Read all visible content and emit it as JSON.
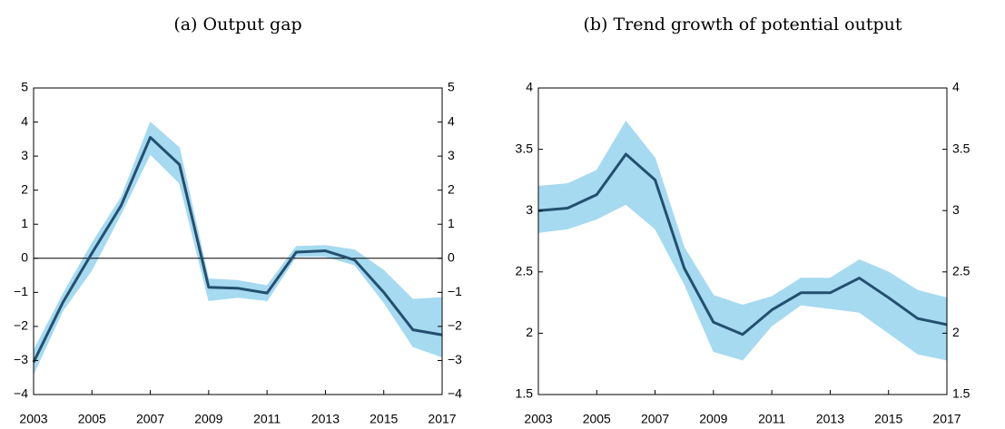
{
  "chart_data": [
    {
      "type": "line",
      "title": "(a) Output gap",
      "x": [
        2003,
        2004,
        2005,
        2006,
        2007,
        2008,
        2009,
        2010,
        2011,
        2012,
        2013,
        2014,
        2015,
        2016,
        2017
      ],
      "series": [
        {
          "color": "#23506f",
          "values": [
            -3.05,
            -1.3,
            0.15,
            1.55,
            3.55,
            2.75,
            -0.85,
            -0.88,
            -1.02,
            0.18,
            0.22,
            -0.05,
            -1.0,
            -2.1,
            -2.25
          ]
        }
      ],
      "band": {
        "color": "#a6daf1",
        "upper": [
          -2.7,
          -1.05,
          0.45,
          1.8,
          4.0,
          3.25,
          -0.6,
          -0.65,
          -0.8,
          0.35,
          0.38,
          0.25,
          -0.35,
          -1.2,
          -1.15
        ],
        "lower": [
          -3.4,
          -1.55,
          -0.35,
          1.3,
          3.05,
          2.2,
          -1.25,
          -1.15,
          -1.25,
          0.05,
          0.05,
          -0.2,
          -1.3,
          -2.6,
          -2.9
        ]
      },
      "xlim": [
        2003,
        2017
      ],
      "xticks": [
        2003,
        2005,
        2007,
        2009,
        2011,
        2013,
        2015,
        2017
      ],
      "ylim": [
        -4,
        5
      ],
      "yticks": [
        {
          "value": -4,
          "label": "−4"
        },
        {
          "value": -3,
          "label": "−3"
        },
        {
          "value": -2,
          "label": "−2"
        },
        {
          "value": -1,
          "label": "−1"
        },
        0,
        1,
        2,
        3,
        4,
        5
      ],
      "zero_line": true
    },
    {
      "type": "line",
      "title": "(b) Trend growth of potential output",
      "x": [
        2003,
        2004,
        2005,
        2006,
        2007,
        2008,
        2009,
        2010,
        2011,
        2012,
        2013,
        2014,
        2015,
        2016,
        2017
      ],
      "series": [
        {
          "color": "#23506f",
          "values": [
            3.0,
            3.02,
            3.13,
            3.46,
            3.25,
            2.53,
            2.09,
            1.99,
            2.19,
            2.33,
            2.33,
            2.45,
            2.29,
            2.12,
            2.07
          ]
        }
      ],
      "band": {
        "color": "#a6daf1",
        "upper": [
          3.2,
          3.22,
          3.33,
          3.73,
          3.43,
          2.7,
          2.31,
          2.23,
          2.3,
          2.45,
          2.45,
          2.6,
          2.5,
          2.35,
          2.29
        ],
        "lower": [
          2.82,
          2.85,
          2.93,
          3.05,
          2.85,
          2.4,
          1.85,
          1.78,
          2.06,
          2.23,
          2.2,
          2.17,
          2.0,
          1.83,
          1.78
        ]
      },
      "xlim": [
        2003,
        2017
      ],
      "xticks": [
        2003,
        2005,
        2007,
        2009,
        2011,
        2013,
        2015,
        2017
      ],
      "ylim": [
        1.5,
        4
      ],
      "yticks": [
        1.5,
        2,
        2.5,
        3,
        3.5,
        4
      ],
      "zero_line": false
    }
  ]
}
